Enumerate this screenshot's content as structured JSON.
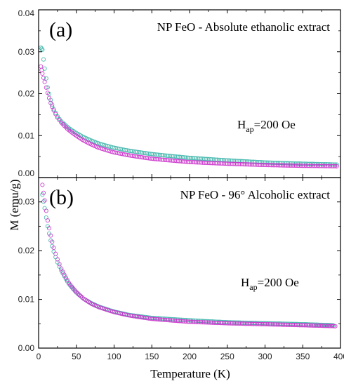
{
  "chart_data": {
    "type": "scatter",
    "colors": {
      "teal": "#3CB4AA",
      "magenta": "#CC33CC"
    },
    "shared": {
      "xlabel": "Temperature (K)",
      "ylabel": "M (emu/g)",
      "xlim": [
        0,
        400
      ],
      "x_ticks": [
        "0",
        "50",
        "100",
        "150",
        "200",
        "250",
        "300",
        "350",
        "400"
      ]
    },
    "panels": [
      {
        "label": "(a)",
        "title": "NP FeO - Absolute ethanolic extract",
        "field_main": "H",
        "field_sub": "ap",
        "field_rest": "=200 Oe",
        "ylim": [
          0,
          0.04
        ],
        "y_ticks": [
          "0.00",
          "0.01",
          "0.02",
          "0.03",
          "0.04"
        ],
        "series": [
          {
            "color": "teal",
            "points": [
              [
                3,
                0.031
              ],
              [
                5,
                0.0305
              ],
              [
                8,
                0.026
              ],
              [
                12,
                0.0215
              ],
              [
                16,
                0.0185
              ],
              [
                20,
                0.0163
              ],
              [
                25,
                0.0146
              ],
              [
                30,
                0.0134
              ],
              [
                40,
                0.0118
              ],
              [
                50,
                0.0106
              ],
              [
                60,
                0.0096
              ],
              [
                70,
                0.0088
              ],
              [
                80,
                0.0081
              ],
              [
                100,
                0.0071
              ],
              [
                120,
                0.0064
              ],
              [
                150,
                0.0056
              ],
              [
                200,
                0.0047
              ],
              [
                250,
                0.0041
              ],
              [
                300,
                0.0036
              ],
              [
                350,
                0.0033
              ],
              [
                395,
                0.0031
              ]
            ]
          },
          {
            "color": "magenta",
            "points": [
              [
                3,
                0.0265
              ],
              [
                5,
                0.0248
              ],
              [
                8,
                0.0228
              ],
              [
                12,
                0.0202
              ],
              [
                16,
                0.0178
              ],
              [
                20,
                0.016
              ],
              [
                25,
                0.0143
              ],
              [
                30,
                0.0131
              ],
              [
                40,
                0.0113
              ],
              [
                50,
                0.01
              ],
              [
                60,
                0.0088
              ],
              [
                70,
                0.0079
              ],
              [
                80,
                0.0071
              ],
              [
                100,
                0.006
              ],
              [
                120,
                0.0053
              ],
              [
                150,
                0.0045
              ],
              [
                200,
                0.0037
              ],
              [
                250,
                0.0033
              ],
              [
                300,
                0.003
              ],
              [
                350,
                0.0028
              ],
              [
                395,
                0.0027
              ]
            ]
          }
        ]
      },
      {
        "label": "(b)",
        "title": "NP FeO - 96° Alcoholic extract",
        "field_main": "H",
        "field_sub": "ap",
        "field_rest": "=200 Oe",
        "ylim": [
          0,
          0.035
        ],
        "y_ticks": [
          "0.00",
          "0.01",
          "0.02",
          "0.03"
        ],
        "series": [
          {
            "color": "teal",
            "points": [
              [
                5,
                0.0315
              ],
              [
                8,
                0.0287
              ],
              [
                12,
                0.025
              ],
              [
                16,
                0.0221
              ],
              [
                20,
                0.0198
              ],
              [
                25,
                0.0176
              ],
              [
                30,
                0.0159
              ],
              [
                40,
                0.0132
              ],
              [
                50,
                0.0114
              ],
              [
                60,
                0.0101
              ],
              [
                70,
                0.0092
              ],
              [
                80,
                0.0085
              ],
              [
                100,
                0.0075
              ],
              [
                120,
                0.0068
              ],
              [
                150,
                0.0062
              ],
              [
                200,
                0.0057
              ],
              [
                250,
                0.0053
              ],
              [
                300,
                0.0051
              ],
              [
                350,
                0.0049
              ],
              [
                390,
                0.0047
              ]
            ]
          },
          {
            "color": "magenta",
            "points": [
              [
                5,
                0.0335
              ],
              [
                8,
                0.0303
              ],
              [
                12,
                0.0262
              ],
              [
                16,
                0.0231
              ],
              [
                20,
                0.0206
              ],
              [
                25,
                0.0182
              ],
              [
                30,
                0.0163
              ],
              [
                40,
                0.0134
              ],
              [
                50,
                0.0115
              ],
              [
                60,
                0.0101
              ],
              [
                70,
                0.0091
              ],
              [
                80,
                0.0084
              ],
              [
                100,
                0.0074
              ],
              [
                120,
                0.0067
              ],
              [
                150,
                0.006
              ],
              [
                200,
                0.0054
              ],
              [
                250,
                0.0051
              ],
              [
                300,
                0.0049
              ],
              [
                350,
                0.0047
              ],
              [
                393,
                0.0045
              ]
            ]
          }
        ]
      }
    ]
  }
}
